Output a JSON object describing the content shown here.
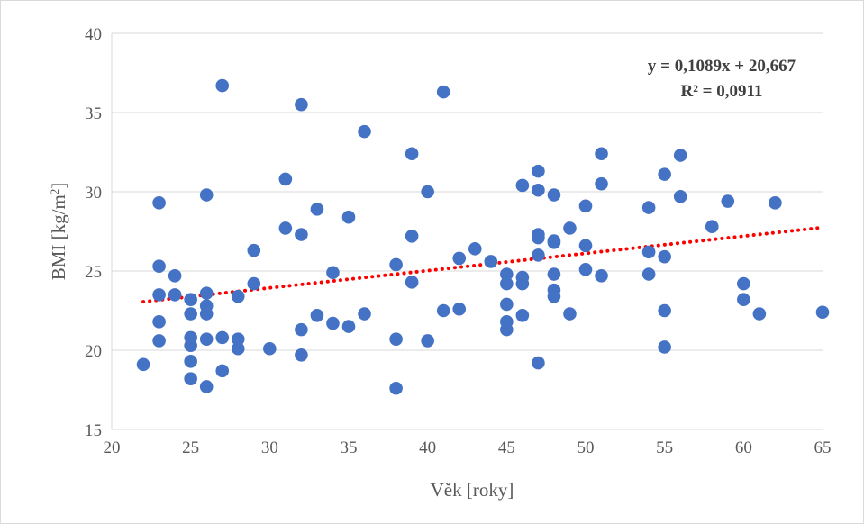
{
  "chart_data": {
    "type": "scatter",
    "title": "",
    "xlabel": "Věk [roky]",
    "ylabel_main": "BMI [kg/m",
    "ylabel_sup": "2",
    "ylabel_end": "]",
    "xlim": [
      20,
      65
    ],
    "ylim": [
      15,
      40
    ],
    "x_ticks": [
      20,
      25,
      30,
      35,
      40,
      45,
      50,
      55,
      60,
      65
    ],
    "y_ticks": [
      15,
      20,
      25,
      30,
      35,
      40
    ],
    "grid": "horizontal",
    "colors": {
      "points": "#4472C4",
      "trendline": "#FF0000",
      "grid": "#d9d9d9",
      "text": "#595959"
    },
    "trendline": {
      "type": "linear",
      "slope": 0.1089,
      "intercept": 20.667,
      "x_range": [
        22,
        65
      ],
      "style": "dotted"
    },
    "annotations": [
      "y = 0,1089x + 20,667",
      "R² = 0,0911"
    ],
    "points": [
      [
        22,
        19.1
      ],
      [
        23,
        29.3
      ],
      [
        23,
        25.3
      ],
      [
        23,
        23.5
      ],
      [
        23,
        21.8
      ],
      [
        23,
        20.6
      ],
      [
        24,
        24.7
      ],
      [
        24,
        23.5
      ],
      [
        25,
        23.2
      ],
      [
        25,
        22.3
      ],
      [
        25,
        20.8
      ],
      [
        25,
        20.3
      ],
      [
        25,
        19.3
      ],
      [
        25,
        18.2
      ],
      [
        26,
        29.8
      ],
      [
        26,
        23.6
      ],
      [
        26,
        22.8
      ],
      [
        26,
        22.3
      ],
      [
        26,
        20.7
      ],
      [
        26,
        17.7
      ],
      [
        27,
        36.7
      ],
      [
        27,
        20.8
      ],
      [
        27,
        18.7
      ],
      [
        28,
        23.4
      ],
      [
        28,
        20.7
      ],
      [
        28,
        20.1
      ],
      [
        29,
        26.3
      ],
      [
        29,
        24.2
      ],
      [
        30,
        20.1
      ],
      [
        31,
        30.8
      ],
      [
        31,
        27.7
      ],
      [
        32,
        35.5
      ],
      [
        32,
        27.3
      ],
      [
        32,
        21.3
      ],
      [
        32,
        19.7
      ],
      [
        33,
        28.9
      ],
      [
        33,
        22.2
      ],
      [
        34,
        24.9
      ],
      [
        34,
        21.7
      ],
      [
        35,
        28.4
      ],
      [
        35,
        21.5
      ],
      [
        36,
        33.8
      ],
      [
        36,
        22.3
      ],
      [
        38,
        25.4
      ],
      [
        38,
        20.7
      ],
      [
        38,
        17.6
      ],
      [
        39,
        32.4
      ],
      [
        39,
        27.2
      ],
      [
        39,
        24.3
      ],
      [
        40,
        30.0
      ],
      [
        40,
        20.6
      ],
      [
        41,
        36.3
      ],
      [
        41,
        22.5
      ],
      [
        42,
        25.8
      ],
      [
        42,
        22.6
      ],
      [
        43,
        26.4
      ],
      [
        44,
        25.6
      ],
      [
        45,
        24.8
      ],
      [
        45,
        24.2
      ],
      [
        45,
        22.9
      ],
      [
        45,
        21.8
      ],
      [
        45,
        21.3
      ],
      [
        46,
        30.4
      ],
      [
        46,
        24.6
      ],
      [
        46,
        24.2
      ],
      [
        46,
        22.2
      ],
      [
        47,
        31.3
      ],
      [
        47,
        30.1
      ],
      [
        47,
        27.3
      ],
      [
        47,
        27.1
      ],
      [
        47,
        26.0
      ],
      [
        47,
        19.2
      ],
      [
        48,
        29.8
      ],
      [
        48,
        26.9
      ],
      [
        48,
        26.8
      ],
      [
        48,
        24.8
      ],
      [
        48,
        23.8
      ],
      [
        48,
        23.4
      ],
      [
        49,
        27.7
      ],
      [
        49,
        22.3
      ],
      [
        50,
        29.1
      ],
      [
        50,
        26.6
      ],
      [
        50,
        25.1
      ],
      [
        51,
        32.4
      ],
      [
        51,
        30.5
      ],
      [
        51,
        24.7
      ],
      [
        54,
        29.0
      ],
      [
        54,
        26.2
      ],
      [
        54,
        24.8
      ],
      [
        55,
        31.1
      ],
      [
        55,
        25.9
      ],
      [
        55,
        22.5
      ],
      [
        55,
        20.2
      ],
      [
        56,
        32.3
      ],
      [
        56,
        29.7
      ],
      [
        58,
        27.8
      ],
      [
        59,
        29.4
      ],
      [
        60,
        24.2
      ],
      [
        60,
        23.2
      ],
      [
        61,
        22.3
      ],
      [
        62,
        29.3
      ],
      [
        65,
        22.4
      ]
    ]
  }
}
